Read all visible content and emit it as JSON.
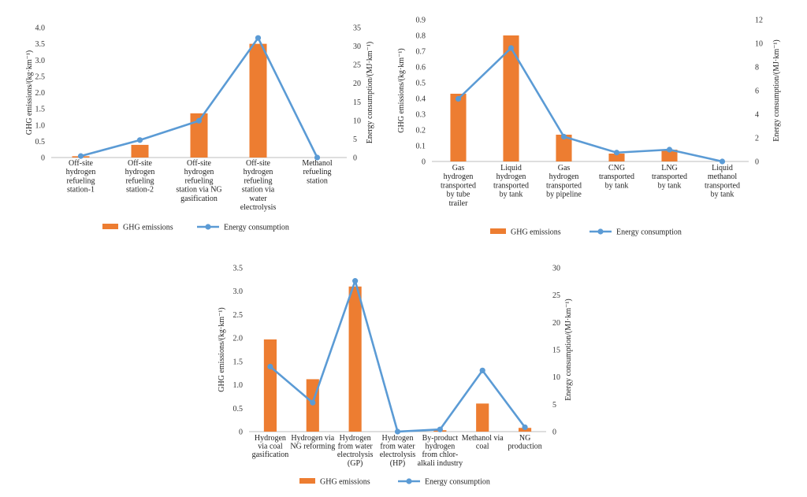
{
  "legend": {
    "bar_label": "GHG emissions",
    "line_label": "Energy consumption"
  },
  "colors": {
    "bar": "#ED7D31",
    "line": "#5B9BD5"
  },
  "chart_data": [
    {
      "type": "bar",
      "combo": "bar+line",
      "left_axis_title": "GHG emissions/(kg·km⁻¹)",
      "right_axis_title": "Energy consumption/(MJ·km⁻¹)",
      "left_ylim": [
        0,
        4.0
      ],
      "left_ticks": [
        "0",
        "0.5",
        "1.0",
        "1.5",
        "2.0",
        "2.5",
        "3.0",
        "3.5",
        "4.0"
      ],
      "right_ylim": [
        0,
        35
      ],
      "right_ticks": [
        "0",
        "5",
        "10",
        "15",
        "20",
        "25",
        "30",
        "35"
      ],
      "categories": [
        [
          "Off-site",
          "hydrogen",
          "refueling",
          "station-1"
        ],
        [
          "Off-site",
          "hydrogen",
          "refueling",
          "station-2"
        ],
        [
          "Off-site",
          "hydrogen",
          "refueling",
          "station via NG",
          "gasification"
        ],
        [
          "Off-site",
          "hydrogen",
          "refueling",
          "station via",
          "water",
          "electrolysis"
        ],
        [
          "Methanol",
          "refueling",
          "station"
        ]
      ],
      "series": [
        {
          "name": "GHG emissions",
          "axis": "left",
          "values": [
            0.04,
            0.39,
            1.36,
            3.5,
            0.0
          ]
        },
        {
          "name": "Energy consumption",
          "axis": "right",
          "values": [
            0.4,
            4.7,
            9.9,
            32.2,
            0.0
          ]
        }
      ]
    },
    {
      "type": "bar",
      "combo": "bar+line",
      "left_axis_title": "GHG emissions/(kg·km⁻¹)",
      "right_axis_title": "Energy consumption/(MJ·km⁻¹)",
      "left_ylim": [
        0,
        0.9
      ],
      "left_ticks": [
        "0",
        "0.1",
        "0.2",
        "0.3",
        "0.4",
        "0.5",
        "0.6",
        "0.7",
        "0.8",
        "0.9"
      ],
      "right_ylim": [
        0,
        12
      ],
      "right_ticks": [
        "0",
        "2",
        "4",
        "6",
        "8",
        "10",
        "12"
      ],
      "categories": [
        [
          "Gas",
          "hydrogen",
          "transported",
          "by tube",
          "trailer"
        ],
        [
          "Liquid",
          "hydrogen",
          "transported",
          "by tank"
        ],
        [
          "Gas",
          "hydrogen",
          "transported",
          "by pipeline"
        ],
        [
          "CNG",
          "transported",
          "by tank"
        ],
        [
          "LNG",
          "transported",
          "by tank"
        ],
        [
          "Liquid",
          "methanol",
          "transported",
          "by tank"
        ]
      ],
      "series": [
        {
          "name": "GHG emissions",
          "axis": "left",
          "values": [
            0.43,
            0.8,
            0.17,
            0.05,
            0.075,
            0.0
          ]
        },
        {
          "name": "Energy consumption",
          "axis": "right",
          "values": [
            5.3,
            9.6,
            2.1,
            0.75,
            1.0,
            0.0
          ]
        }
      ]
    },
    {
      "type": "bar",
      "combo": "bar+line",
      "left_axis_title": "GHG emissions/(kg·km⁻¹)",
      "right_axis_title": "Energy consumption/(MJ·km⁻¹)",
      "left_ylim": [
        0,
        3.5
      ],
      "left_ticks": [
        "0",
        "0.5",
        "1.0",
        "1.5",
        "2.0",
        "2.5",
        "3.0",
        "3.5"
      ],
      "right_ylim": [
        0,
        30
      ],
      "right_ticks": [
        "0",
        "5",
        "10",
        "15",
        "20",
        "25",
        "30"
      ],
      "categories": [
        [
          "Hydrogen",
          "via coal",
          "gasification"
        ],
        [
          "Hydrogen via",
          "NG reforming"
        ],
        [
          "Hydrogen",
          "from water",
          "electrolysis",
          "(GP)"
        ],
        [
          "Hydrogen",
          "from water",
          "electrolysis",
          "(HP)"
        ],
        [
          "By-product",
          "hydrogen",
          "from chlor-",
          "alkali industry"
        ],
        [
          "Methanol via",
          "coal"
        ],
        [
          "NG",
          "production"
        ]
      ],
      "series": [
        {
          "name": "GHG emissions",
          "axis": "left",
          "values": [
            1.97,
            1.12,
            3.1,
            0.0,
            0.03,
            0.6,
            0.08
          ]
        },
        {
          "name": "Energy consumption",
          "axis": "right",
          "values": [
            11.9,
            5.3,
            27.6,
            0.0,
            0.4,
            11.2,
            0.8
          ]
        }
      ]
    }
  ]
}
